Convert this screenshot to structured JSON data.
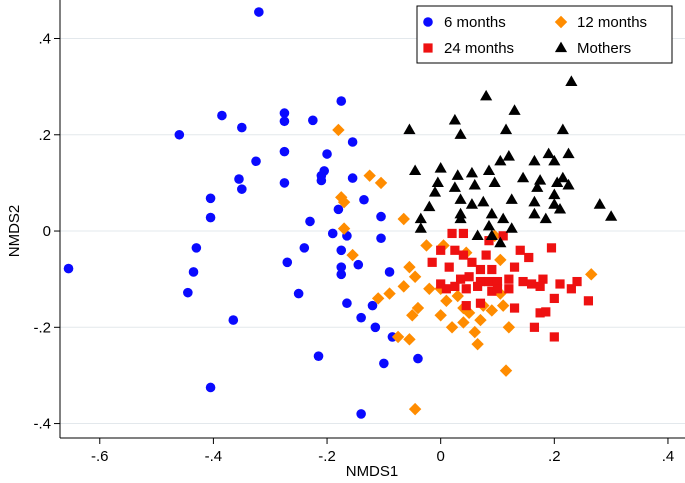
{
  "chart_data": {
    "type": "scatter",
    "title": "",
    "xlabel": "NMDS1",
    "ylabel": "NMDS2",
    "xlim": [
      -0.67,
      0.43
    ],
    "ylim": [
      -0.43,
      0.48
    ],
    "xticks": [
      -0.6,
      -0.4,
      -0.2,
      0,
      0.2,
      0.4
    ],
    "xtick_labels": [
      "-.6",
      "-.4",
      "-.2",
      "0",
      ".2",
      ".4"
    ],
    "yticks": [
      -0.4,
      -0.2,
      0,
      0.2,
      0.4
    ],
    "ytick_labels": [
      "-.4",
      "-.2",
      "0",
      ".2",
      ".4"
    ],
    "grid": true,
    "legend_position": "top-right",
    "series": [
      {
        "name": "6 months",
        "marker": "circle",
        "color": "#0a0aff",
        "points": [
          [
            -0.32,
            0.455
          ],
          [
            -0.46,
            0.2
          ],
          [
            -0.385,
            0.24
          ],
          [
            -0.35,
            0.215
          ],
          [
            -0.275,
            0.245
          ],
          [
            -0.275,
            0.228
          ],
          [
            -0.225,
            0.23
          ],
          [
            -0.175,
            0.27
          ],
          [
            -0.155,
            0.185
          ],
          [
            -0.325,
            0.145
          ],
          [
            -0.275,
            0.165
          ],
          [
            -0.2,
            0.16
          ],
          [
            -0.205,
            0.125
          ],
          [
            -0.21,
            0.115
          ],
          [
            -0.21,
            0.105
          ],
          [
            -0.155,
            0.11
          ],
          [
            -0.355,
            0.108
          ],
          [
            -0.35,
            0.087
          ],
          [
            -0.275,
            0.1
          ],
          [
            -0.405,
            0.068
          ],
          [
            -0.405,
            0.028
          ],
          [
            -0.135,
            0.065
          ],
          [
            -0.18,
            0.045
          ],
          [
            -0.105,
            0.03
          ],
          [
            -0.23,
            0.02
          ],
          [
            -0.19,
            -0.005
          ],
          [
            -0.165,
            -0.01
          ],
          [
            -0.105,
            -0.015
          ],
          [
            -0.43,
            -0.035
          ],
          [
            -0.24,
            -0.035
          ],
          [
            -0.175,
            -0.04
          ],
          [
            -0.27,
            -0.065
          ],
          [
            -0.175,
            -0.075
          ],
          [
            -0.145,
            -0.07
          ],
          [
            -0.435,
            -0.085
          ],
          [
            -0.175,
            -0.09
          ],
          [
            -0.09,
            -0.085
          ],
          [
            -0.445,
            -0.128
          ],
          [
            -0.25,
            -0.13
          ],
          [
            -0.165,
            -0.15
          ],
          [
            -0.12,
            -0.155
          ],
          [
            -0.365,
            -0.185
          ],
          [
            -0.14,
            -0.18
          ],
          [
            -0.115,
            -0.2
          ],
          [
            -0.085,
            -0.22
          ],
          [
            -0.655,
            -0.078
          ],
          [
            -0.215,
            -0.26
          ],
          [
            -0.1,
            -0.275
          ],
          [
            -0.04,
            -0.265
          ],
          [
            -0.405,
            -0.325
          ],
          [
            -0.14,
            -0.38
          ]
        ]
      },
      {
        "name": "12 months",
        "marker": "diamond",
        "color": "#ff8c00",
        "points": [
          [
            -0.18,
            0.21
          ],
          [
            -0.175,
            0.07
          ],
          [
            -0.17,
            0.06
          ],
          [
            -0.125,
            0.115
          ],
          [
            -0.105,
            0.1
          ],
          [
            -0.17,
            0.005
          ],
          [
            -0.155,
            -0.05
          ],
          [
            -0.065,
            0.025
          ],
          [
            -0.025,
            -0.03
          ],
          [
            0.005,
            -0.03
          ],
          [
            0.045,
            -0.045
          ],
          [
            0.105,
            -0.06
          ],
          [
            0.095,
            -0.01
          ],
          [
            -0.055,
            -0.075
          ],
          [
            -0.045,
            -0.095
          ],
          [
            -0.065,
            -0.115
          ],
          [
            -0.09,
            -0.13
          ],
          [
            -0.11,
            -0.14
          ],
          [
            -0.02,
            -0.12
          ],
          [
            0.0,
            -0.12
          ],
          [
            0.0,
            -0.175
          ],
          [
            0.01,
            -0.145
          ],
          [
            0.03,
            -0.135
          ],
          [
            0.04,
            -0.16
          ],
          [
            0.05,
            -0.17
          ],
          [
            0.075,
            -0.155
          ],
          [
            0.09,
            -0.165
          ],
          [
            0.105,
            -0.13
          ],
          [
            0.11,
            -0.155
          ],
          [
            0.02,
            -0.2
          ],
          [
            0.04,
            -0.19
          ],
          [
            0.07,
            -0.185
          ],
          [
            0.06,
            -0.21
          ],
          [
            0.065,
            -0.235
          ],
          [
            -0.04,
            -0.16
          ],
          [
            -0.05,
            -0.175
          ],
          [
            -0.055,
            -0.225
          ],
          [
            -0.075,
            -0.22
          ],
          [
            0.12,
            -0.2
          ],
          [
            0.115,
            -0.29
          ],
          [
            -0.045,
            -0.37
          ],
          [
            0.265,
            -0.09
          ]
        ]
      },
      {
        "name": "24 months",
        "marker": "square",
        "color": "#ee1111",
        "points": [
          [
            0.02,
            -0.005
          ],
          [
            0.04,
            -0.005
          ],
          [
            0.085,
            -0.02
          ],
          [
            0.11,
            -0.01
          ],
          [
            0.0,
            -0.04
          ],
          [
            0.025,
            -0.04
          ],
          [
            0.04,
            -0.05
          ],
          [
            0.08,
            -0.05
          ],
          [
            0.14,
            -0.04
          ],
          [
            0.195,
            -0.035
          ],
          [
            -0.015,
            -0.065
          ],
          [
            0.015,
            -0.075
          ],
          [
            0.055,
            -0.065
          ],
          [
            0.07,
            -0.08
          ],
          [
            0.09,
            -0.08
          ],
          [
            0.13,
            -0.075
          ],
          [
            0.155,
            -0.055
          ],
          [
            0.035,
            -0.1
          ],
          [
            0.05,
            -0.095
          ],
          [
            0.07,
            -0.105
          ],
          [
            0.085,
            -0.105
          ],
          [
            0.1,
            -0.105
          ],
          [
            0.12,
            -0.1
          ],
          [
            0.145,
            -0.105
          ],
          [
            0.16,
            -0.11
          ],
          [
            0.18,
            -0.1
          ],
          [
            0.175,
            -0.115
          ],
          [
            0.21,
            -0.11
          ],
          [
            0.23,
            -0.12
          ],
          [
            0.24,
            -0.105
          ],
          [
            0.0,
            -0.11
          ],
          [
            0.01,
            -0.12
          ],
          [
            0.025,
            -0.115
          ],
          [
            0.045,
            -0.12
          ],
          [
            0.065,
            -0.115
          ],
          [
            0.09,
            -0.125
          ],
          [
            0.1,
            -0.12
          ],
          [
            0.12,
            -0.12
          ],
          [
            0.2,
            -0.14
          ],
          [
            0.26,
            -0.145
          ],
          [
            0.045,
            -0.155
          ],
          [
            0.07,
            -0.15
          ],
          [
            0.13,
            -0.16
          ],
          [
            0.175,
            -0.17
          ],
          [
            0.165,
            -0.2
          ],
          [
            0.185,
            -0.168
          ],
          [
            0.2,
            -0.22
          ]
        ]
      },
      {
        "name": "Mothers",
        "marker": "triangle",
        "color": "#000000",
        "points": [
          [
            0.23,
            0.31
          ],
          [
            0.08,
            0.28
          ],
          [
            0.13,
            0.25
          ],
          [
            0.025,
            0.23
          ],
          [
            0.115,
            0.21
          ],
          [
            0.035,
            0.2
          ],
          [
            0.215,
            0.21
          ],
          [
            -0.055,
            0.21
          ],
          [
            0.19,
            0.16
          ],
          [
            0.225,
            0.16
          ],
          [
            0.105,
            0.145
          ],
          [
            0.12,
            0.155
          ],
          [
            0.165,
            0.145
          ],
          [
            0.2,
            0.145
          ],
          [
            0.0,
            0.13
          ],
          [
            0.03,
            0.115
          ],
          [
            0.055,
            0.12
          ],
          [
            0.085,
            0.125
          ],
          [
            0.145,
            0.11
          ],
          [
            0.175,
            0.105
          ],
          [
            0.205,
            0.1
          ],
          [
            0.215,
            0.11
          ],
          [
            0.225,
            0.095
          ],
          [
            -0.045,
            0.125
          ],
          [
            -0.005,
            0.1
          ],
          [
            0.025,
            0.09
          ],
          [
            0.06,
            0.095
          ],
          [
            0.095,
            0.1
          ],
          [
            0.17,
            0.09
          ],
          [
            0.2,
            0.075
          ],
          [
            -0.01,
            0.08
          ],
          [
            0.035,
            0.065
          ],
          [
            0.055,
            0.055
          ],
          [
            0.075,
            0.06
          ],
          [
            0.125,
            0.065
          ],
          [
            0.165,
            0.06
          ],
          [
            0.2,
            0.055
          ],
          [
            0.28,
            0.055
          ],
          [
            -0.02,
            0.05
          ],
          [
            -0.035,
            0.025
          ],
          [
            0.035,
            0.035
          ],
          [
            0.09,
            0.035
          ],
          [
            0.11,
            0.025
          ],
          [
            0.185,
            0.025
          ],
          [
            0.21,
            0.045
          ],
          [
            0.3,
            0.03
          ],
          [
            -0.035,
            0.005
          ],
          [
            0.035,
            0.025
          ],
          [
            0.085,
            0.01
          ],
          [
            0.125,
            0.005
          ],
          [
            0.165,
            0.035
          ],
          [
            0.065,
            -0.01
          ],
          [
            0.09,
            -0.01
          ],
          [
            0.105,
            -0.025
          ]
        ]
      }
    ]
  }
}
